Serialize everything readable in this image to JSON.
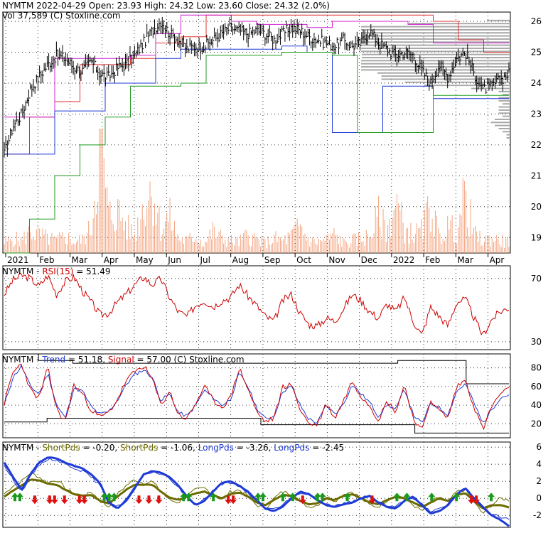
{
  "header": {
    "price": "NYMTM  2022-04-29 Open: 23.93  High: 24.32  Low: 23.60  Close: 24.32 (2.0%)",
    "volume": "Vol 37,589   (C) Stoxline.com"
  },
  "colors": {
    "price_line": "#000000",
    "volume_bars": "#f4a582",
    "channel_red": "#e03030",
    "channel_magenta": "#d020d0",
    "channel_blue": "#1f3bd6",
    "channel_green": "#1f9a1f",
    "rsi_line": "#cc0000",
    "trend_line": "#1f3bd6",
    "signal_line": "#cc0000",
    "short_pds": "#6b6b00",
    "long_pds": "#1f3bd6",
    "buy_arrow": "#1a9a1a",
    "sell_arrow": "#e01010",
    "volume_profile": "#a8a8a8"
  },
  "chart_data": [
    {
      "type": "line",
      "name": "price",
      "title": "NYMTM",
      "x_tick_labels": [
        "2021",
        "Feb",
        "Mar",
        "Apr",
        "May",
        "Jun",
        "Jul",
        "Aug",
        "Sep",
        "Oct",
        "Nov",
        "Dec",
        "2022",
        "Feb",
        "Mar",
        "Apr"
      ],
      "ylim": [
        18.5,
        26.3
      ],
      "y_ticks": [
        19,
        20,
        21,
        22,
        23,
        24,
        25,
        26
      ],
      "grid": true,
      "closes_weekly": [
        21.7,
        22.6,
        23.0,
        23.8,
        24.2,
        24.6,
        24.9,
        24.8,
        24.5,
        24.4,
        24.7,
        24.3,
        24.2,
        24.5,
        24.6,
        24.9,
        25.3,
        25.7,
        26.0,
        25.6,
        25.4,
        25.1,
        25.2,
        25.2,
        25.4,
        25.6,
        25.8,
        25.7,
        25.6,
        25.7,
        25.6,
        25.4,
        25.6,
        25.8,
        25.7,
        25.5,
        25.4,
        25.3,
        25.2,
        25.4,
        25.2,
        25.3,
        25.7,
        25.3,
        25.1,
        24.9,
        25.0,
        24.9,
        24.4,
        24.0,
        24.6,
        24.2,
        24.8,
        25.0,
        24.3,
        23.8,
        23.9,
        24.1,
        24.32
      ],
      "channels": [
        {
          "color": "red",
          "values": [
            21.7,
            22.9,
            23.4,
            24.6,
            24.6,
            24.8,
            25.3,
            25.5,
            26.2,
            26.2,
            26.2,
            26.2,
            26.2,
            26.2,
            26.2,
            26.2,
            26.2,
            26.0,
            25.4,
            25.0
          ]
        },
        {
          "color": "magenta",
          "values": [
            22.9,
            22.9,
            24.8,
            24.8,
            24.8,
            24.9,
            25.6,
            26.2,
            26.2,
            26.0,
            25.9,
            25.9,
            25.8,
            26.0,
            26.0,
            26.0,
            25.9,
            25.3,
            25.3,
            25.3
          ]
        },
        {
          "color": "blue",
          "values": [
            21.7,
            21.7,
            23.1,
            23.1,
            24.0,
            24.0,
            24.8,
            25.1,
            25.1,
            25.1,
            25.1,
            25.2,
            25.0,
            22.4,
            22.4,
            23.9,
            23.9,
            23.5,
            23.5,
            23.5
          ]
        },
        {
          "color": "green",
          "values": [
            18.5,
            19.6,
            21.0,
            22.0,
            22.9,
            23.9,
            23.9,
            24.0,
            24.9,
            24.9,
            24.9,
            25.0,
            25.0,
            24.9,
            22.4,
            22.4,
            22.4,
            23.6,
            23.6,
            23.6
          ]
        }
      ],
      "volume_relative_weekly": [
        0.08,
        0.12,
        0.1,
        0.18,
        0.15,
        0.12,
        0.1,
        0.14,
        0.09,
        0.11,
        0.2,
        0.95,
        0.3,
        0.35,
        0.22,
        0.15,
        0.4,
        0.55,
        0.2,
        0.3,
        0.12,
        0.1,
        0.14,
        0.08,
        0.18,
        0.12,
        0.1,
        0.09,
        0.15,
        0.11,
        0.08,
        0.12,
        0.1,
        0.14,
        0.22,
        0.1,
        0.09,
        0.11,
        0.15,
        0.08,
        0.1,
        0.12,
        0.14,
        0.3,
        0.18,
        0.42,
        0.2,
        0.15,
        0.18,
        0.4,
        0.12,
        0.22,
        0.18,
        0.48,
        0.15,
        0.1,
        0.12,
        0.1,
        0.09
      ]
    },
    {
      "type": "line",
      "name": "rsi",
      "label_prefix": "NYMTM - ",
      "label_series": "RSI(15)",
      "label_value": " = 51.49",
      "ylim": [
        25,
        78
      ],
      "y_ticks": [
        30,
        70
      ],
      "values": [
        60,
        69,
        72,
        70,
        65,
        72,
        60,
        68,
        71,
        62,
        55,
        47,
        48,
        55,
        60,
        66,
        71,
        66,
        70,
        58,
        49,
        46,
        53,
        56,
        52,
        56,
        58,
        66,
        59,
        53,
        46,
        43,
        56,
        60,
        48,
        41,
        40,
        45,
        43,
        51,
        60,
        56,
        49,
        45,
        54,
        49,
        58,
        43,
        34,
        52,
        46,
        40,
        55,
        57,
        45,
        34,
        44,
        49,
        51.49
      ]
    },
    {
      "type": "line",
      "name": "stochastic",
      "label_prefix": "NYMTM - ",
      "label_trend": "Trend",
      "label_trend_value": " = 51.18, ",
      "label_signal": "Signal",
      "label_signal_value": " = 57.00   (C) Stoxline.com",
      "ylim": [
        5,
        95
      ],
      "y_ticks": [
        20,
        40,
        60,
        80
      ],
      "trend": [
        40,
        70,
        82,
        60,
        52,
        75,
        40,
        26,
        58,
        55,
        38,
        30,
        33,
        45,
        62,
        73,
        78,
        70,
        45,
        52,
        32,
        28,
        40,
        56,
        48,
        40,
        46,
        74,
        60,
        37,
        25,
        28,
        55,
        60,
        40,
        25,
        21,
        40,
        30,
        42,
        62,
        52,
        43,
        28,
        41,
        35,
        58,
        30,
        20,
        42,
        37,
        30,
        55,
        63,
        42,
        20,
        35,
        48,
        51.18
      ],
      "signal": [
        42,
        75,
        85,
        56,
        47,
        80,
        36,
        22,
        62,
        52,
        35,
        27,
        32,
        46,
        66,
        76,
        82,
        68,
        40,
        55,
        30,
        25,
        42,
        60,
        45,
        38,
        48,
        80,
        58,
        33,
        22,
        26,
        60,
        62,
        36,
        20,
        19,
        42,
        26,
        45,
        66,
        50,
        40,
        24,
        44,
        33,
        62,
        26,
        12,
        46,
        34,
        26,
        60,
        67,
        38,
        14,
        38,
        52,
        57
      ],
      "upper_band": [
        95,
        95,
        95,
        95,
        88,
        88,
        88,
        88,
        85,
        85,
        85,
        85,
        85,
        85,
        85,
        85,
        85,
        85,
        85,
        85,
        85,
        85,
        85,
        85,
        85,
        85,
        85,
        85,
        85,
        85,
        85,
        85,
        85,
        85,
        85,
        85,
        85,
        85,
        85,
        85,
        85,
        85,
        85,
        85,
        85,
        85,
        88,
        88,
        88,
        88,
        88,
        88,
        88,
        88,
        63,
        63,
        63,
        63,
        63
      ],
      "lower_band": [
        22,
        22,
        22,
        22,
        22,
        26,
        26,
        26,
        26,
        26,
        26,
        26,
        26,
        26,
        26,
        26,
        26,
        26,
        26,
        26,
        26,
        26,
        26,
        26,
        26,
        26,
        26,
        26,
        26,
        26,
        19,
        19,
        19,
        19,
        19,
        19,
        19,
        19,
        19,
        19,
        19,
        19,
        19,
        19,
        19,
        19,
        19,
        19,
        10,
        10,
        10,
        10,
        10,
        10,
        10,
        10,
        10,
        10,
        10
      ]
    },
    {
      "type": "line",
      "name": "pds",
      "label_prefix": "NYMTM - ",
      "label_short1": "ShortPds",
      "label_short1_value": " = -0.20, ",
      "label_short2": "ShortPds",
      "label_short2_value": " = -1.06, ",
      "label_long1": "LongPds",
      "label_long1_value": " = -3.26, ",
      "label_long2": "LongPds",
      "label_long2_value": " = -2.45",
      "ylim": [
        -3.4,
        6.6
      ],
      "y_ticks": [
        -2,
        0,
        2,
        4,
        6
      ],
      "long_pds_1": [
        4.2,
        2.5,
        1.0,
        2.8,
        4.2,
        4.8,
        4.7,
        4.2,
        3.8,
        3.5,
        2.8,
        1.8,
        -0.5,
        -1.2,
        -0.3,
        1.2,
        2.8,
        3.2,
        3.0,
        2.5,
        1.5,
        0.2,
        -0.8,
        -0.3,
        0.8,
        1.8,
        2.0,
        1.5,
        0.8,
        -0.2,
        -1.2,
        -1.5,
        -1.0,
        0.0,
        0.8,
        0.5,
        -0.2,
        -0.8,
        -1.0,
        -0.7,
        -0.5,
        0.0,
        0.3,
        -0.5,
        -1.0,
        -1.2,
        -0.3,
        0.2,
        -0.8,
        -1.8,
        -1.5,
        -0.8,
        0.5,
        1.2,
        0.0,
        -1.0,
        -2.0,
        -2.5,
        -3.26
      ],
      "long_pds_2": [
        3.8,
        2.2,
        0.8,
        2.5,
        3.9,
        4.6,
        4.5,
        4.0,
        3.6,
        3.2,
        2.5,
        1.5,
        -0.3,
        -1.0,
        -0.1,
        1.3,
        2.7,
        3.1,
        2.9,
        2.3,
        1.3,
        0.1,
        -0.7,
        -0.1,
        0.9,
        1.7,
        1.8,
        1.3,
        0.6,
        -0.3,
        -1.1,
        -1.3,
        -0.8,
        0.1,
        0.7,
        0.4,
        -0.3,
        -0.7,
        -0.9,
        -0.6,
        -0.4,
        0.1,
        0.2,
        -0.4,
        -0.9,
        -1.0,
        -0.2,
        0.1,
        -0.7,
        -1.6,
        -1.3,
        -0.6,
        0.6,
        1.1,
        -0.1,
        -1.0,
        -1.8,
        -2.2,
        -2.45
      ],
      "short_pds_1": [
        0.5,
        1.5,
        2.0,
        3.0,
        2.5,
        1.8,
        2.2,
        1.2,
        0.5,
        0.0,
        0.8,
        -0.3,
        -1.0,
        0.5,
        1.5,
        2.2,
        1.8,
        2.0,
        0.8,
        -0.2,
        -0.5,
        0.3,
        1.0,
        1.2,
        0.5,
        -0.2,
        0.8,
        1.0,
        0.3,
        -0.8,
        -1.2,
        0.0,
        0.8,
        0.5,
        -0.5,
        -1.0,
        -0.8,
        0.2,
        -0.3,
        0.5,
        0.8,
        0.0,
        -0.8,
        -1.0,
        -0.2,
        0.4,
        0.1,
        -0.8,
        -1.5,
        -0.5,
        0.2,
        -0.5,
        0.8,
        1.0,
        -0.5,
        -1.8,
        -0.8,
        0.0,
        -0.2
      ],
      "short_pds_2": [
        0.2,
        0.9,
        1.5,
        2.2,
        2.1,
        1.7,
        1.6,
        1.0,
        0.5,
        0.3,
        0.4,
        -0.3,
        -0.6,
        0.2,
        1.0,
        1.6,
        1.6,
        1.6,
        0.8,
        0.1,
        -0.2,
        0.2,
        0.6,
        0.8,
        0.4,
        0.0,
        0.5,
        0.7,
        0.2,
        -0.5,
        -0.8,
        -0.2,
        0.4,
        0.3,
        -0.3,
        -0.7,
        -0.6,
        0.0,
        -0.2,
        0.3,
        0.5,
        0.0,
        -0.5,
        -0.7,
        -0.2,
        0.2,
        0.0,
        -0.5,
        -1.0,
        -0.5,
        0.0,
        -0.3,
        0.4,
        0.6,
        -0.3,
        -1.2,
        -0.8,
        -0.8,
        -1.06
      ],
      "signals": [
        {
          "idx": 1,
          "dir": "buy"
        },
        {
          "idx": 2,
          "dir": "buy"
        },
        {
          "idx": 5,
          "dir": "sell"
        },
        {
          "idx": 8,
          "dir": "sell"
        },
        {
          "idx": 9,
          "dir": "sell"
        },
        {
          "idx": 11,
          "dir": "sell"
        },
        {
          "idx": 14,
          "dir": "sell"
        },
        {
          "idx": 15,
          "dir": "sell"
        },
        {
          "idx": 19,
          "dir": "buy"
        },
        {
          "idx": 20,
          "dir": "buy"
        },
        {
          "idx": 21,
          "dir": "buy"
        },
        {
          "idx": 26,
          "dir": "sell"
        },
        {
          "idx": 28,
          "dir": "sell"
        },
        {
          "idx": 30,
          "dir": "sell"
        },
        {
          "idx": 35,
          "dir": "buy"
        },
        {
          "idx": 36,
          "dir": "buy"
        },
        {
          "idx": 41,
          "dir": "buy"
        },
        {
          "idx": 44,
          "dir": "sell"
        },
        {
          "idx": 45,
          "dir": "sell"
        },
        {
          "idx": 50,
          "dir": "buy"
        },
        {
          "idx": 51,
          "dir": "buy"
        },
        {
          "idx": 55,
          "dir": "buy"
        },
        {
          "idx": 57,
          "dir": "buy"
        },
        {
          "idx": 59,
          "dir": "sell"
        },
        {
          "idx": 62,
          "dir": "buy"
        },
        {
          "idx": 63,
          "dir": "buy"
        },
        {
          "idx": 68,
          "dir": "buy"
        },
        {
          "idx": 73,
          "dir": "sell"
        },
        {
          "idx": 78,
          "dir": "buy"
        },
        {
          "idx": 80,
          "dir": "buy"
        },
        {
          "idx": 85,
          "dir": "buy"
        },
        {
          "idx": 90,
          "dir": "buy"
        },
        {
          "idx": 93,
          "dir": "sell"
        },
        {
          "idx": 94,
          "dir": "sell"
        },
        {
          "idx": 97,
          "dir": "buy"
        }
      ]
    }
  ]
}
